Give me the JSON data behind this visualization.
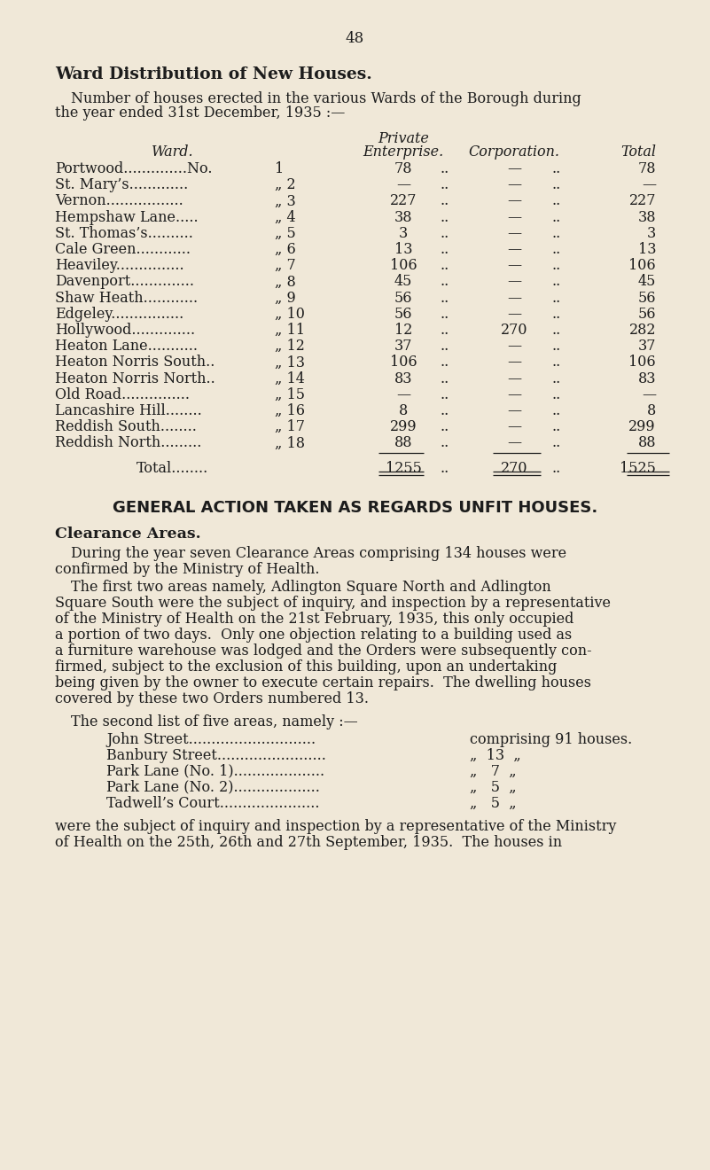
{
  "bg_color": "#f0e8d8",
  "text_color": "#1c1c1c",
  "page_number": "48",
  "title_bold": "Ward Distribution of New Houses.",
  "intro_line1": "Number of houses erected in the various Wards of the Borough during",
  "intro_line2": "the year ended 31st December, 1935 :—",
  "col_private": "Private",
  "col_ward": "Ward.",
  "col_enterprise": "Enterprise.",
  "col_corporation": "Corporation.",
  "col_total": "Total",
  "rows": [
    [
      "Portwood..............No.",
      "1",
      "78",
      "—",
      "78"
    ],
    [
      "St. Mary’s.............",
      "„ 2",
      "—",
      "—",
      "—"
    ],
    [
      "Vernon.................",
      "„ 3",
      "227",
      "—",
      "227"
    ],
    [
      "Hempshaw Lane.....",
      "„ 4",
      "38",
      "—",
      "38"
    ],
    [
      "St. Thomas’s..........",
      "„ 5",
      "3",
      "—",
      "3"
    ],
    [
      "Cale Green............",
      "„ 6",
      "13",
      "—",
      "13"
    ],
    [
      "Heaviley...............",
      "„ 7",
      "106",
      "—",
      "106"
    ],
    [
      "Davenport..............",
      "„ 8",
      "45",
      "—",
      "45"
    ],
    [
      "Shaw Heath............",
      "„ 9",
      "56",
      "—",
      "56"
    ],
    [
      "Edgeley................",
      "„ 10",
      "56",
      "—",
      "56"
    ],
    [
      "Hollywood..............",
      "„ 11",
      "12",
      "270",
      "282"
    ],
    [
      "Heaton Lane...........",
      "„ 12",
      "37",
      "—",
      "37"
    ],
    [
      "Heaton Norris South..",
      "„ 13",
      "106",
      "—",
      "106"
    ],
    [
      "Heaton Norris North..",
      "„ 14",
      "83",
      "—",
      "83"
    ],
    [
      "Old Road...............",
      "„ 15",
      "—",
      "—",
      "—"
    ],
    [
      "Lancashire Hill........",
      "„ 16",
      "8",
      "—",
      "8"
    ],
    [
      "Reddish South........",
      "„ 17",
      "299",
      "—",
      "299"
    ],
    [
      "Reddish North.........",
      "„ 18",
      "88",
      "—",
      "88"
    ]
  ],
  "total_label": "Total........",
  "total_enterprise": "1255",
  "total_corporation": "270",
  "total_total": "1525",
  "sep1": "..",
  "sep2": "..",
  "section2_title": "GENERAL ACTION TAKEN AS REGARDS UNFIT HOUSES.",
  "clearance_title": "Clearance Areas.",
  "p1": "During the year seven Clearance Areas comprising 134 houses were",
  "p1b": "confirmed by the Ministry of Health.",
  "p2_indent": "The first two areas namely, Adlington Square North and Adlington",
  "p2": [
    "Square South were the subject of inquiry, and inspection by a representative",
    "of the Ministry of Health on the 21st February, 1935, this only occupied",
    "a portion of two days.  Only one objection relating to a building used as",
    "a furniture warehouse was lodged and the Orders were subsequently con­",
    "firmed, subject to the exclusion of this building, upon an undertaking",
    "being given by the owner to execute certain repairs.  The dwelling houses",
    "covered by these two Orders numbered 13."
  ],
  "p3_indent": "The second list of five areas, namely :—",
  "areas": [
    [
      "John Street............................",
      "comprising 91 houses."
    ],
    [
      "Banbury Street........................",
      "„  13  „"
    ],
    [
      "Park Lane (No. 1)....................",
      "„   7  „"
    ],
    [
      "Park Lane (No. 2)...................",
      "„   5  „"
    ],
    [
      "Tadwell’s Court......................",
      "„   5  „"
    ]
  ],
  "p4": "were the subject of inquiry and inspection by a representative of the Ministry",
  "p4b": "of Health on the 25th, 26th and 27th September, 1935.  The houses in"
}
